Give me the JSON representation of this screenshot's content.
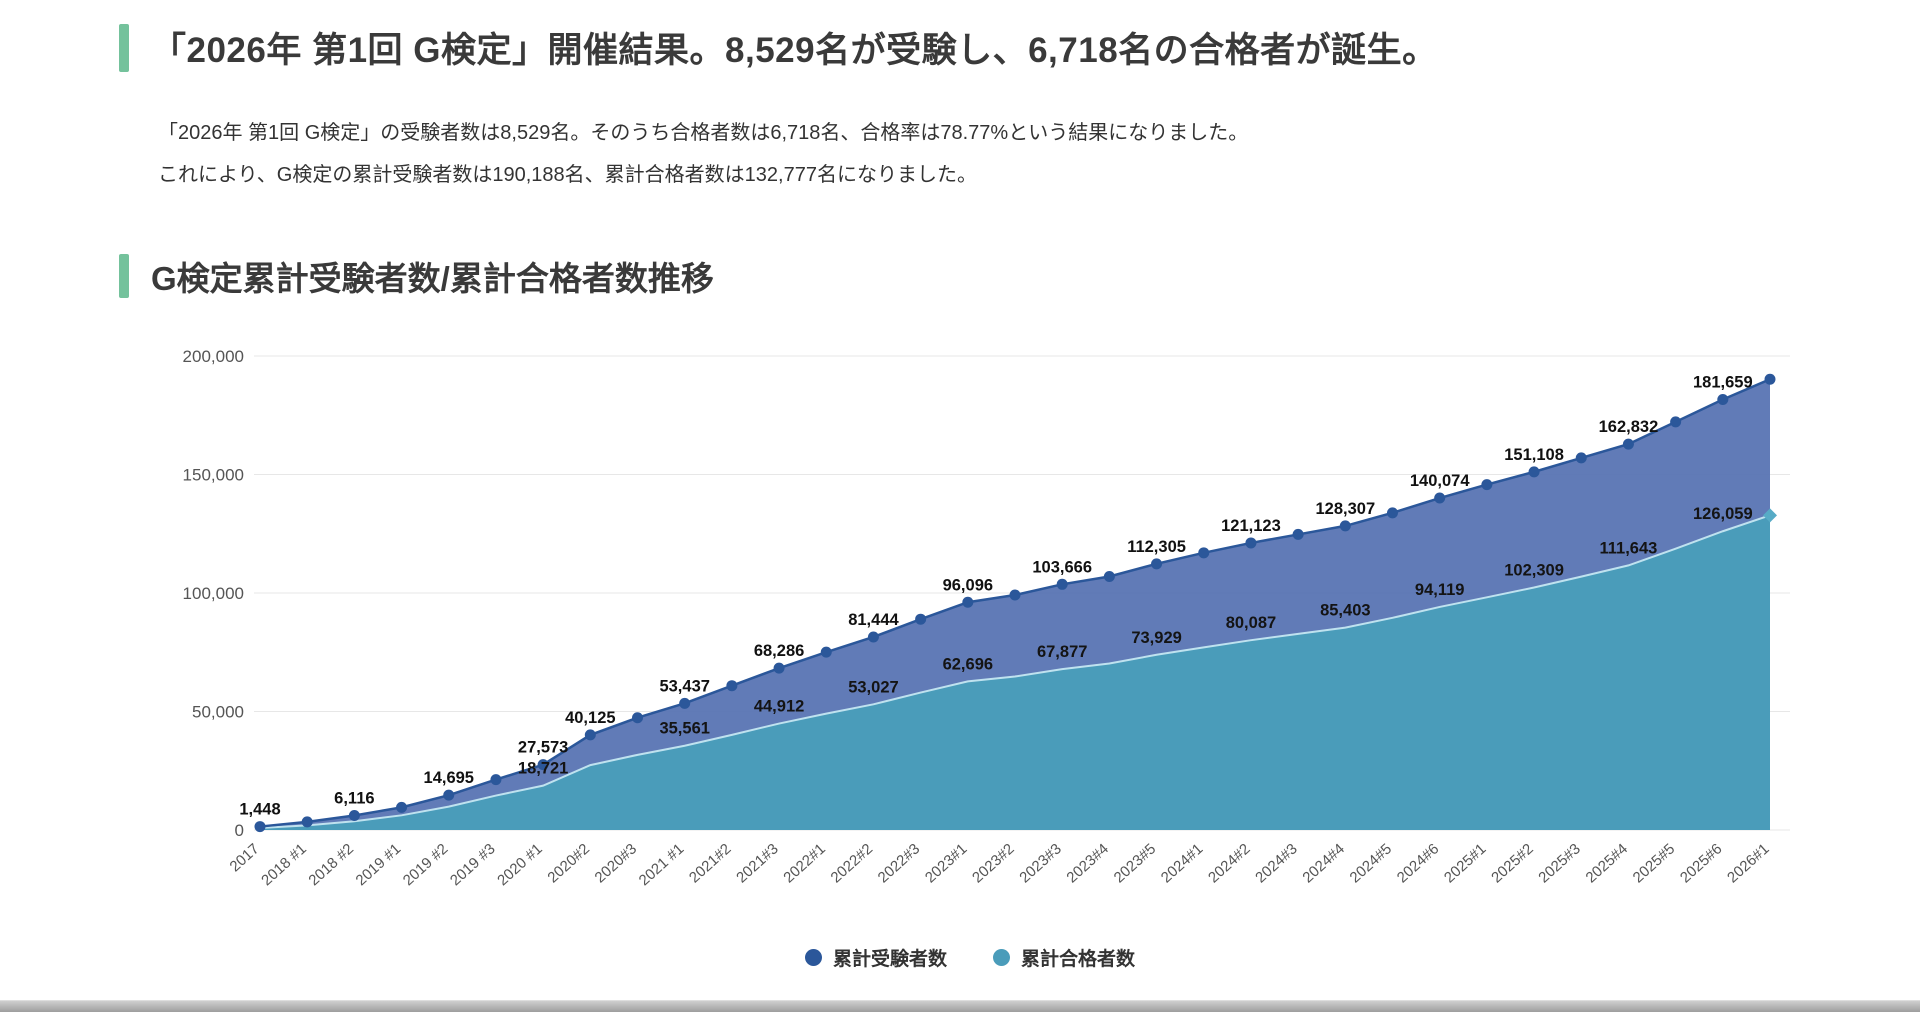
{
  "header": {
    "title": "「2026年 第1回 G検定」開催結果。8,529名が受験し、6,718名の合格者が誕生。",
    "paragraph_line1": "「2026年 第1回 G検定」の受験者数は8,529名。そのうち合格者数は6,718名、合格率は78.77%という結果になりました。",
    "paragraph_line2": "これにより、G検定の累計受験者数は190,188名、累計合格者数は132,777名になりました。"
  },
  "section": {
    "title": "G検定累計受験者数/累計合格者数推移"
  },
  "chart_data": {
    "type": "area",
    "title": "G検定累計受験者数/累計合格者数推移",
    "xlabel": "",
    "ylabel": "",
    "ylim": [
      0,
      200000
    ],
    "yticks": [
      0,
      50000,
      100000,
      150000,
      200000
    ],
    "grid": true,
    "legend_position": "bottom",
    "categories": [
      "2017",
      "2018 #1",
      "2018 #2",
      "2019 #1",
      "2019 #2",
      "2019 #3",
      "2020 #1",
      "2020#2",
      "2020#3",
      "2021 #1",
      "2021#2",
      "2021#3",
      "2022#1",
      "2022#2",
      "2022#3",
      "2023#1",
      "2023#2",
      "2023#3",
      "2023#4",
      "2023#5",
      "2024#1",
      "2024#2",
      "2024#3",
      "2024#4",
      "2024#5",
      "2024#6",
      "2025#1",
      "2025#2",
      "2025#3",
      "2025#4",
      "2025#5",
      "2025#6",
      "2026#1"
    ],
    "series": [
      {
        "name": "累計受験者数",
        "color": "#2b579a",
        "area_color": "#5974b3",
        "values": [
          1448,
          3436,
          6116,
          9552,
          14695,
          21275,
          27573,
          40125,
          47375,
          53437,
          60887,
          68286,
          75046,
          81444,
          88946,
          96096,
          99148,
          103666,
          106975,
          112305,
          116956,
          121123,
          124718,
          128307,
          133824,
          140074,
          145738,
          151108,
          157000,
          162832,
          172200,
          181659,
          190188
        ],
        "labeled_indices": [
          0,
          2,
          4,
          6,
          7,
          9,
          11,
          13,
          15,
          17,
          19,
          21,
          23,
          25,
          27,
          29,
          31
        ]
      },
      {
        "name": "累計合格者数",
        "color": "#4a9cba",
        "area_color": "#4a9cba",
        "values": [
          823,
          1959,
          3699,
          6199,
          9871,
          14523,
          18721,
          27377,
          31695,
          35561,
          40143,
          44912,
          49110,
          53027,
          57991,
          62696,
          64771,
          67877,
          70267,
          73929,
          77071,
          80087,
          82749,
          85403,
          89521,
          94119,
          98188,
          102309,
          106900,
          111643,
          118700,
          126059,
          132777
        ],
        "labeled_indices": [
          6,
          9,
          11,
          13,
          15,
          17,
          19,
          21,
          23,
          25,
          27,
          29,
          31
        ]
      }
    ]
  },
  "colors": {
    "accent_green": "#74c29c",
    "examinees_blue": "#2b579a",
    "passers_teal": "#4a9cba",
    "grid_gray": "#e7e7e7"
  }
}
